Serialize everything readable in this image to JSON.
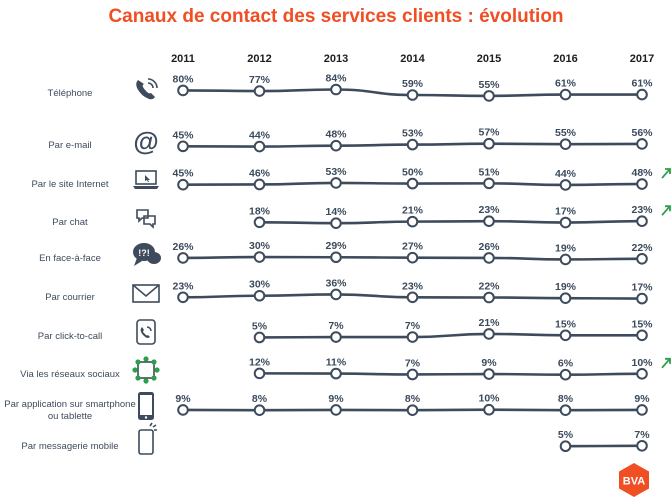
{
  "title": "Canaux de contact des services clients : évolution",
  "logo_text": "BVA",
  "chart_data": {
    "type": "line",
    "title": "Canaux de contact des services clients : évolution",
    "x": [
      "2011",
      "2012",
      "2013",
      "2014",
      "2015",
      "2016",
      "2017"
    ],
    "value_suffix": "%",
    "series": [
      {
        "name": "Téléphone",
        "icon": "phone-icon",
        "values": [
          80,
          77,
          84,
          59,
          55,
          61,
          61
        ],
        "rising": false
      },
      {
        "name": "Par e-mail",
        "icon": "at-sign-icon",
        "values": [
          45,
          44,
          48,
          53,
          57,
          55,
          56
        ],
        "rising": false
      },
      {
        "name": "Par le site Internet",
        "icon": "laptop-icon",
        "values": [
          45,
          46,
          53,
          50,
          51,
          44,
          48
        ],
        "rising": true
      },
      {
        "name": "Par chat",
        "icon": "chat-bubbles-icon",
        "values": [
          null,
          18,
          14,
          21,
          23,
          17,
          23
        ],
        "rising": true
      },
      {
        "name": "En face-à-face",
        "icon": "speech-bubbles-icon",
        "values": [
          26,
          30,
          29,
          27,
          26,
          19,
          22
        ],
        "rising": false
      },
      {
        "name": "Par courrier",
        "icon": "envelope-icon",
        "values": [
          23,
          30,
          36,
          23,
          22,
          19,
          17
        ],
        "rising": false
      },
      {
        "name": "Par click-to-call",
        "icon": "tablet-phone-icon",
        "values": [
          null,
          5,
          7,
          7,
          21,
          15,
          15
        ],
        "rising": false
      },
      {
        "name": "Via les réseaux sociaux",
        "icon": "network-icon",
        "values": [
          null,
          12,
          11,
          7,
          9,
          6,
          10
        ],
        "rising": true
      },
      {
        "name": "Par application sur smartphone ou tablette",
        "icon": "smartphone-icon",
        "values": [
          9,
          8,
          9,
          8,
          10,
          8,
          9
        ],
        "rising": false
      },
      {
        "name": "Par messagerie mobile",
        "icon": "mobile-message-icon",
        "values": [
          null,
          null,
          null,
          null,
          null,
          5,
          7
        ],
        "rising": false
      }
    ],
    "colors": {
      "line": "#3d4b5c",
      "marker_fill": "#ffffff",
      "rising_arrow": "#2e9e48",
      "title": "#f04e23",
      "logo": "#f04e23"
    }
  }
}
